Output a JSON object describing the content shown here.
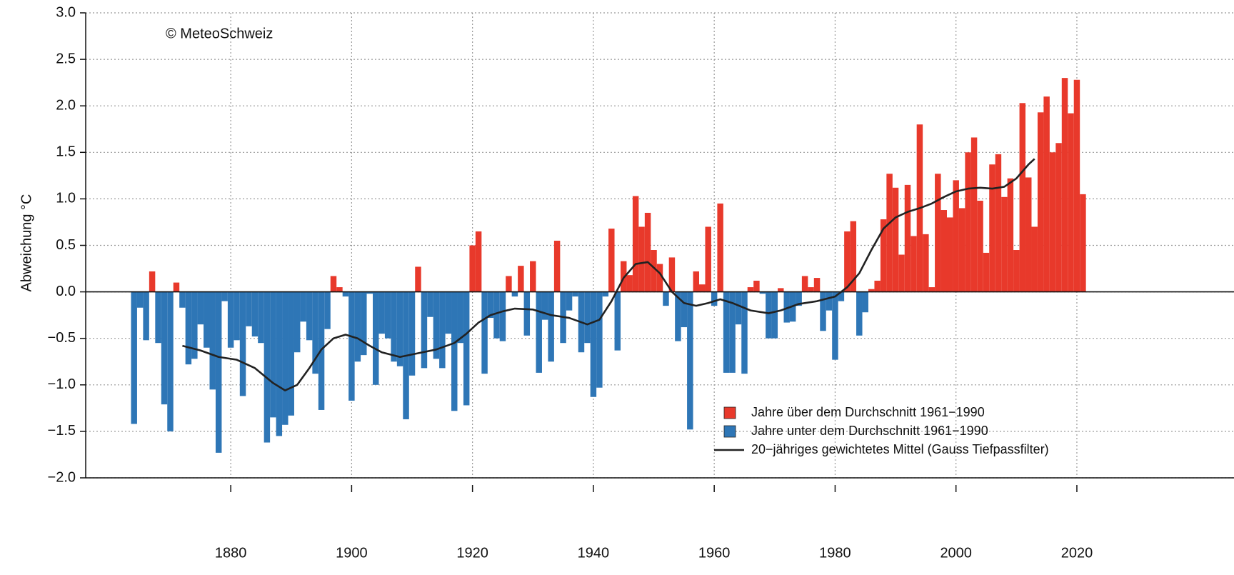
{
  "chart_data": {
    "type": "bar",
    "ylabel": "Abweichung °C",
    "annotation": "© MeteoSchweiz",
    "x": [
      1864,
      1865,
      1866,
      1867,
      1868,
      1869,
      1870,
      1871,
      1872,
      1873,
      1874,
      1875,
      1876,
      1877,
      1878,
      1879,
      1880,
      1881,
      1882,
      1883,
      1884,
      1885,
      1886,
      1887,
      1888,
      1889,
      1890,
      1891,
      1892,
      1893,
      1894,
      1895,
      1896,
      1897,
      1898,
      1899,
      1900,
      1901,
      1902,
      1903,
      1904,
      1905,
      1906,
      1907,
      1908,
      1909,
      1910,
      1911,
      1912,
      1913,
      1914,
      1915,
      1916,
      1917,
      1918,
      1919,
      1920,
      1921,
      1922,
      1923,
      1924,
      1925,
      1926,
      1927,
      1928,
      1929,
      1930,
      1931,
      1932,
      1933,
      1934,
      1935,
      1936,
      1937,
      1938,
      1939,
      1940,
      1941,
      1942,
      1943,
      1944,
      1945,
      1946,
      1947,
      1948,
      1949,
      1950,
      1951,
      1952,
      1953,
      1954,
      1955,
      1956,
      1957,
      1958,
      1959,
      1960,
      1961,
      1962,
      1963,
      1964,
      1965,
      1966,
      1967,
      1968,
      1969,
      1970,
      1971,
      1972,
      1973,
      1974,
      1975,
      1976,
      1977,
      1978,
      1979,
      1980,
      1981,
      1982,
      1983,
      1984,
      1985,
      1986,
      1987,
      1988,
      1989,
      1990,
      1991,
      1992,
      1993,
      1994,
      1995,
      1996,
      1997,
      1998,
      1999,
      2000,
      2001,
      2002,
      2003,
      2004,
      2005,
      2006,
      2007,
      2008,
      2009,
      2010,
      2011,
      2012,
      2013,
      2014,
      2015,
      2016,
      2017,
      2018,
      2019,
      2020,
      2021
    ],
    "values": [
      -1.42,
      -0.17,
      -0.52,
      0.22,
      -0.55,
      -1.21,
      -1.5,
      0.1,
      -0.17,
      -0.78,
      -0.72,
      -0.35,
      -0.6,
      -1.05,
      -1.73,
      -0.1,
      -0.6,
      -0.52,
      -1.12,
      -0.37,
      -0.48,
      -0.55,
      -1.62,
      -1.35,
      -1.55,
      -1.43,
      -1.33,
      -0.65,
      -0.32,
      -0.52,
      -0.88,
      -1.27,
      -0.4,
      0.17,
      0.05,
      -0.05,
      -1.17,
      -0.75,
      -0.68,
      -0.02,
      -1.0,
      -0.45,
      -0.5,
      -0.75,
      -0.8,
      -1.37,
      -0.9,
      0.27,
      -0.82,
      -0.27,
      -0.72,
      -0.82,
      -0.45,
      -1.28,
      -0.55,
      -1.22,
      0.5,
      0.65,
      -0.88,
      -0.28,
      -0.5,
      -0.53,
      0.17,
      -0.05,
      0.28,
      -0.47,
      0.33,
      -0.87,
      -0.3,
      -0.75,
      0.55,
      -0.55,
      -0.2,
      -0.05,
      -0.65,
      -0.55,
      -1.13,
      -1.03,
      -0.05,
      0.68,
      -0.63,
      0.33,
      0.18,
      1.03,
      0.7,
      0.85,
      0.45,
      0.3,
      -0.15,
      0.37,
      -0.53,
      -0.38,
      -1.48,
      0.22,
      0.08,
      0.7,
      -0.15,
      0.95,
      -0.87,
      -0.87,
      -0.35,
      -0.88,
      0.05,
      0.12,
      -0.02,
      -0.5,
      -0.5,
      0.04,
      -0.33,
      -0.32,
      -0.15,
      0.17,
      0.05,
      0.15,
      -0.42,
      -0.2,
      -0.73,
      -0.1,
      0.65,
      0.76,
      -0.47,
      -0.22,
      0.03,
      0.12,
      0.78,
      1.27,
      1.12,
      0.4,
      1.15,
      0.6,
      1.8,
      0.62,
      0.05,
      1.27,
      0.88,
      0.8,
      1.2,
      0.9,
      1.5,
      1.66,
      0.98,
      0.42,
      1.37,
      1.48,
      1.02,
      1.22,
      0.45,
      2.03,
      1.23,
      0.7,
      1.93,
      2.1,
      1.5,
      1.6,
      2.3,
      1.92,
      2.28,
      1.05
    ],
    "legend": [
      {
        "name": "Jahre über dem Durchschnitt 1961−1990",
        "color": "#e8392b"
      },
      {
        "name": "Jahre unter dem Durchschnitt 1961−1990",
        "color": "#2e76b6"
      }
    ],
    "line": {
      "type": "line",
      "name": "20−jähriges gewichtetes Mittel (Gauss Tiefpassfilter)",
      "color": "#222222",
      "x": [
        1872,
        1875,
        1878,
        1881,
        1884,
        1887,
        1889,
        1891,
        1893,
        1895,
        1897,
        1899,
        1901,
        1903,
        1905,
        1908,
        1911,
        1914,
        1917,
        1919,
        1921,
        1923,
        1925,
        1927,
        1930,
        1933,
        1936,
        1939,
        1941,
        1943,
        1945,
        1947,
        1949,
        1951,
        1953,
        1955,
        1957,
        1959,
        1961,
        1963,
        1966,
        1969,
        1971,
        1974,
        1977,
        1980,
        1982,
        1984,
        1986,
        1988,
        1990,
        1992,
        1994,
        1996,
        1998,
        2000,
        2002,
        2004,
        2006,
        2008,
        2010,
        2012,
        2013
      ],
      "values": [
        -0.58,
        -0.63,
        -0.7,
        -0.73,
        -0.82,
        -0.98,
        -1.06,
        -1.0,
        -0.82,
        -0.62,
        -0.5,
        -0.46,
        -0.5,
        -0.58,
        -0.65,
        -0.7,
        -0.66,
        -0.62,
        -0.55,
        -0.45,
        -0.33,
        -0.25,
        -0.21,
        -0.18,
        -0.19,
        -0.25,
        -0.28,
        -0.35,
        -0.3,
        -0.1,
        0.15,
        0.3,
        0.32,
        0.2,
        0.0,
        -0.12,
        -0.15,
        -0.12,
        -0.08,
        -0.12,
        -0.2,
        -0.23,
        -0.2,
        -0.13,
        -0.1,
        -0.05,
        0.05,
        0.2,
        0.45,
        0.68,
        0.8,
        0.86,
        0.9,
        0.95,
        1.02,
        1.08,
        1.11,
        1.12,
        1.11,
        1.13,
        1.22,
        1.37,
        1.43
      ]
    },
    "xlim": [
      1856,
      2046
    ],
    "ylim": [
      -2,
      3
    ],
    "xticks": [
      1880,
      1900,
      1920,
      1940,
      1960,
      1980,
      2000,
      2020
    ],
    "yticks": [
      {
        "value": -2,
        "label": "−2.0"
      },
      {
        "value": -1.5,
        "label": "−1.5"
      },
      {
        "value": -1,
        "label": "−1.0"
      },
      {
        "value": -0.5,
        "label": "−0.5"
      },
      {
        "value": 0,
        "label": "0.0"
      },
      {
        "value": 0.5,
        "label": "0.5"
      },
      {
        "value": 1,
        "label": "1.0"
      },
      {
        "value": 1.5,
        "label": "1.5"
      },
      {
        "value": 2,
        "label": "2.0"
      },
      {
        "value": 2.5,
        "label": "2.5"
      },
      {
        "value": 3,
        "label": "3.0"
      }
    ],
    "grid": true,
    "legend_position": "lower right"
  }
}
